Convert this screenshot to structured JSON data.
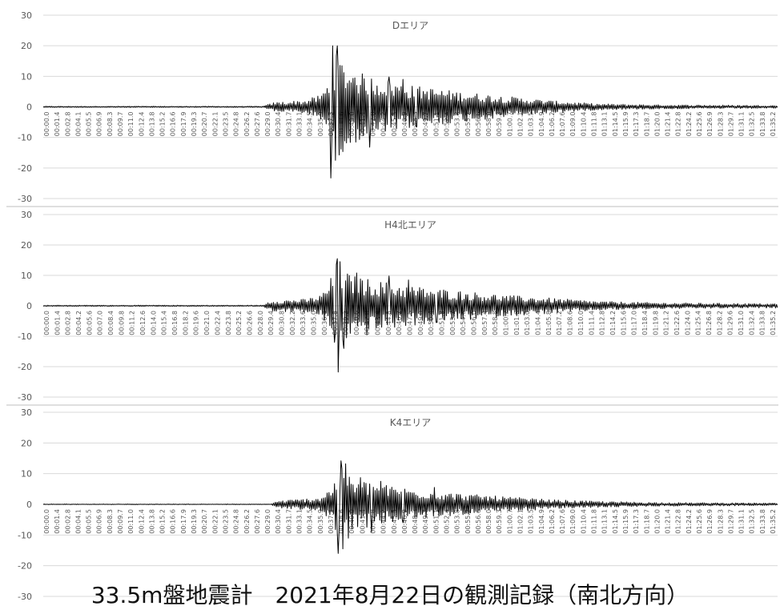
{
  "caption": "33.5m盤地震計　2021年8月22日の観測記録（南北方向）",
  "colors": {
    "trace": "#000000",
    "axis_text": "#595959",
    "grid": "#d9d9d9",
    "background": "#ffffff"
  },
  "chart_data": [
    {
      "type": "line",
      "title": "Dエリア",
      "xlabel": "",
      "ylabel": "",
      "ylim": [
        -30,
        30
      ],
      "yticks": [
        30,
        20,
        10,
        0,
        -10,
        -20,
        -30
      ],
      "grid": "horizontal",
      "legend": "none",
      "x_range": [
        "00:00.0",
        "01:35.2"
      ],
      "xticks": [
        "00:00.0",
        "00:01.4",
        "00:02.8",
        "00:04.1",
        "00:05.5",
        "00:06.9",
        "00:08.3",
        "00:09.7",
        "00:11.0",
        "00:12.4",
        "00:13.8",
        "00:15.2",
        "00:16.6",
        "00:17.9",
        "00:19.3",
        "00:20.7",
        "00:22.1",
        "00:23.5",
        "00:24.8",
        "00:26.2",
        "00:27.6",
        "00:29.0",
        "00:30.4",
        "00:31.7",
        "00:33.1",
        "00:34.5",
        "00:35.9",
        "00:37.3",
        "00:38.6",
        "00:40.0",
        "00:41.4",
        "00:42.8",
        "00:44.2",
        "00:45.5",
        "00:46.9",
        "00:48.3",
        "00:49.7",
        "00:51.1",
        "00:52.4",
        "00:53.8",
        "00:55.2",
        "00:56.6",
        "00:58.0",
        "00:59.3",
        "01:00.7",
        "01:02.1",
        "01:03.5",
        "01:04.9",
        "01:06.2",
        "01:07.6",
        "01:09.0",
        "01:10.4",
        "01:11.8",
        "01:13.1",
        "01:14.5",
        "01:15.9",
        "01:17.3",
        "01:18.7",
        "01:20.0",
        "01:21.4",
        "01:22.8",
        "01:24.2",
        "01:25.6",
        "01:26.9",
        "01:28.3",
        "01:29.7",
        "01:31.1",
        "01:32.5",
        "01:33.8",
        "01:35.2"
      ],
      "series": [
        {
          "values_note_free": true,
          "envelope": [
            [
              0,
              0.2
            ],
            [
              28.5,
              0.2
            ],
            [
              30.0,
              1.5
            ],
            [
              34.0,
              2.2
            ],
            [
              36.0,
              4.0
            ],
            [
              37.0,
              8.0
            ],
            [
              38.0,
              17.0
            ],
            [
              40.0,
              12.0
            ],
            [
              44.0,
              9.0
            ],
            [
              48.0,
              7.0
            ],
            [
              54.0,
              5.0
            ],
            [
              60.0,
              3.5
            ],
            [
              66.0,
              2.0
            ],
            [
              72.0,
              1.0
            ],
            [
              80.0,
              0.7
            ],
            [
              95.3,
              0.5
            ]
          ],
          "peaks": [
            [
              37.3,
              -23.3
            ],
            [
              37.5,
              20.0
            ],
            [
              37.9,
              -17.5
            ],
            [
              38.2,
              20.0
            ],
            [
              38.6,
              -13.8
            ],
            [
              40.4,
              9.5
            ],
            [
              42.3,
              -13.2
            ],
            [
              44.9,
              9.8
            ],
            [
              46.7,
              9.0
            ],
            [
              48.3,
              -6.5
            ]
          ]
        }
      ]
    },
    {
      "type": "line",
      "title": "H4北エリア",
      "xlabel": "",
      "ylabel": "",
      "ylim": [
        -30,
        30
      ],
      "yticks": [
        30,
        20,
        10,
        0,
        -10,
        -20,
        -30
      ],
      "grid": "horizontal",
      "legend": "none",
      "x_range": [
        "00:00.0",
        "01:35.2"
      ],
      "xticks": [
        "00:00.0",
        "00:01.4",
        "00:02.8",
        "00:04.2",
        "00:05.6",
        "00:07.0",
        "00:08.4",
        "00:09.8",
        "00:11.2",
        "00:12.6",
        "00:14.0",
        "00:15.4",
        "00:16.8",
        "00:18.2",
        "00:19.6",
        "00:21.0",
        "00:22.4",
        "00:23.8",
        "00:25.2",
        "00:26.6",
        "00:28.0",
        "00:29.4",
        "00:30.8",
        "00:32.2",
        "00:33.6",
        "00:35.0",
        "00:36.4",
        "00:37.8",
        "00:39.2",
        "00:40.6",
        "00:42.0",
        "00:43.4",
        "00:44.8",
        "00:46.2",
        "00:47.6",
        "00:49.0",
        "00:50.4",
        "00:51.8",
        "00:53.2",
        "00:54.6",
        "00:56.0",
        "00:57.4",
        "00:58.8",
        "01:00.2",
        "01:01.6",
        "01:03.0",
        "01:04.4",
        "01:05.8",
        "01:07.2",
        "01:08.6",
        "01:10.0",
        "01:11.4",
        "01:12.8",
        "01:14.2",
        "01:15.6",
        "01:17.0",
        "01:18.4",
        "01:19.8",
        "01:21.2",
        "01:22.6",
        "01:24.0",
        "01:25.4",
        "01:26.8",
        "01:28.2",
        "01:29.6",
        "01:31.0",
        "01:32.4",
        "01:33.8",
        "01:35.2"
      ],
      "series": [
        {
          "envelope": [
            [
              0,
              0.2
            ],
            [
              28.5,
              0.2
            ],
            [
              29.5,
              1.8
            ],
            [
              34.0,
              2.2
            ],
            [
              36.0,
              3.5
            ],
            [
              37.0,
              7.0
            ],
            [
              38.0,
              14.0
            ],
            [
              40.0,
              10.0
            ],
            [
              44.0,
              8.0
            ],
            [
              48.0,
              6.5
            ],
            [
              54.0,
              5.0
            ],
            [
              60.0,
              3.5
            ],
            [
              66.0,
              2.5
            ],
            [
              72.0,
              1.5
            ],
            [
              80.0,
              1.0
            ],
            [
              95.3,
              0.7
            ]
          ],
          "peaks": [
            [
              37.8,
              -12.0
            ],
            [
              38.1,
              15.5
            ],
            [
              38.3,
              -21.8
            ],
            [
              38.5,
              14.5
            ],
            [
              39.0,
              -14.0
            ],
            [
              40.7,
              10.8
            ],
            [
              42.0,
              -9.5
            ],
            [
              44.9,
              9.8
            ],
            [
              47.4,
              8.5
            ],
            [
              51.0,
              -5.5
            ]
          ]
        }
      ]
    },
    {
      "type": "line",
      "title": "K4エリア",
      "xlabel": "",
      "ylabel": "",
      "ylim": [
        -30,
        30
      ],
      "yticks": [
        30,
        20,
        10,
        0,
        -10,
        -20,
        -30
      ],
      "grid": "horizontal",
      "legend": "none",
      "x_range": [
        "00:00.0",
        "01:35.2"
      ],
      "xticks": [
        "00:00.0",
        "00:01.4",
        "00:02.8",
        "00:04.1",
        "00:05.5",
        "00:06.9",
        "00:08.3",
        "00:09.7",
        "00:11.0",
        "00:12.4",
        "00:13.8",
        "00:15.2",
        "00:16.6",
        "00:17.9",
        "00:19.3",
        "00:20.7",
        "00:22.1",
        "00:23.5",
        "00:24.8",
        "00:26.2",
        "00:27.6",
        "00:29.0",
        "00:30.4",
        "00:31.7",
        "00:33.1",
        "00:34.5",
        "00:35.9",
        "00:37.3",
        "00:38.6",
        "00:40.0",
        "00:41.4",
        "00:42.8",
        "00:44.2",
        "00:45.5",
        "00:46.9",
        "00:48.3",
        "00:49.7",
        "00:51.1",
        "00:52.4",
        "00:53.8",
        "00:55.2",
        "00:56.6",
        "00:58.0",
        "00:59.3",
        "01:00.7",
        "01:02.1",
        "01:03.5",
        "01:04.9",
        "01:06.2",
        "01:07.6",
        "01:09.0",
        "01:10.4",
        "01:11.8",
        "01:13.1",
        "01:14.5",
        "01:15.9",
        "01:17.3",
        "01:18.7",
        "01:20.0",
        "01:21.4",
        "01:22.8",
        "01:24.2",
        "01:25.6",
        "01:26.9",
        "01:28.3",
        "01:29.7",
        "01:31.1",
        "01:32.5",
        "01:33.8",
        "01:35.2"
      ],
      "series": [
        {
          "envelope": [
            [
              0,
              0.1
            ],
            [
              29.5,
              0.1
            ],
            [
              30.5,
              1.2
            ],
            [
              34.0,
              1.8
            ],
            [
              36.0,
              2.5
            ],
            [
              37.5,
              6.0
            ],
            [
              38.6,
              12.0
            ],
            [
              40.0,
              8.5
            ],
            [
              44.0,
              6.5
            ],
            [
              48.0,
              5.0
            ],
            [
              54.0,
              3.5
            ],
            [
              60.0,
              2.5
            ],
            [
              66.0,
              1.5
            ],
            [
              72.0,
              1.0
            ],
            [
              80.0,
              0.6
            ],
            [
              95.3,
              0.4
            ]
          ],
          "peaks": [
            [
              38.3,
              -16.0
            ],
            [
              38.6,
              14.2
            ],
            [
              38.9,
              -14.5
            ],
            [
              39.2,
              13.2
            ],
            [
              39.6,
              -11.0
            ],
            [
              41.1,
              8.7
            ],
            [
              42.6,
              -9.0
            ],
            [
              43.8,
              7.5
            ],
            [
              46.7,
              -6.0
            ],
            [
              50.7,
              5.5
            ]
          ]
        }
      ]
    }
  ]
}
